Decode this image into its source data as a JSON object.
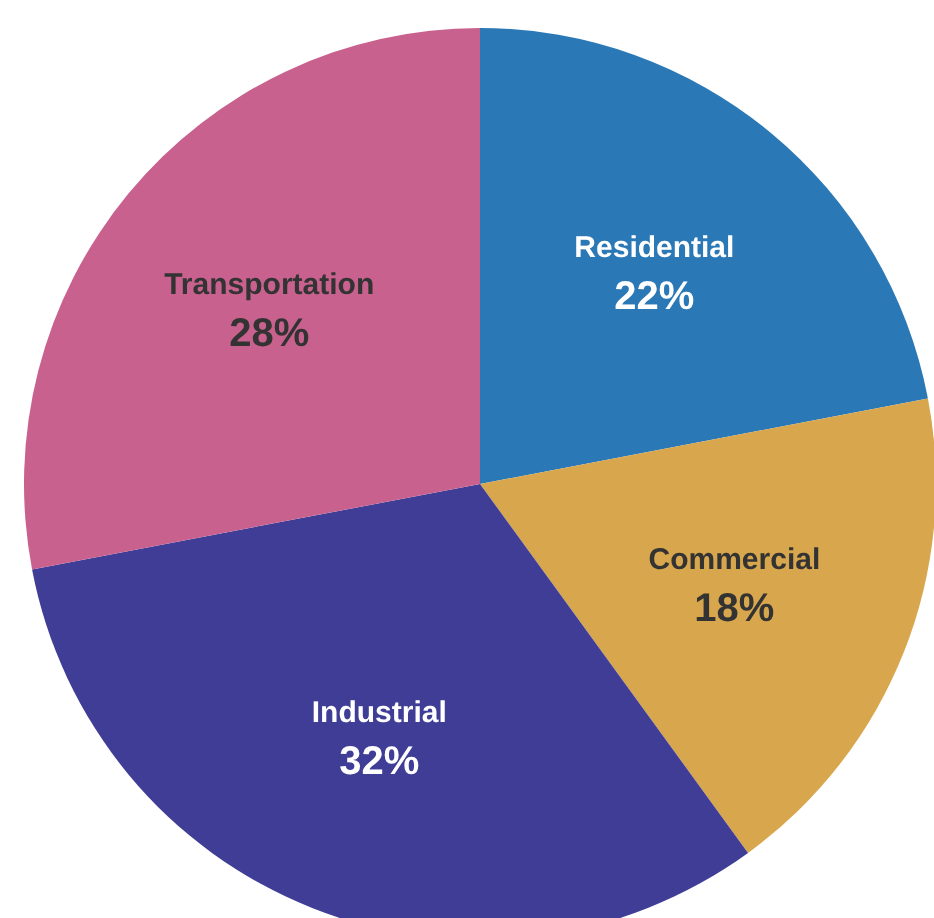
{
  "chart_data": {
    "type": "pie",
    "categories": [
      "Residential",
      "Commercial",
      "Industrial",
      "Transportation"
    ],
    "values": [
      22,
      18,
      32,
      28
    ],
    "colors": [
      "#2a78b6",
      "#d8a64c",
      "#3f3d96",
      "#c9618f"
    ],
    "value_labels": [
      "22%",
      "18%",
      "32%",
      "28%"
    ],
    "legend": false
  }
}
